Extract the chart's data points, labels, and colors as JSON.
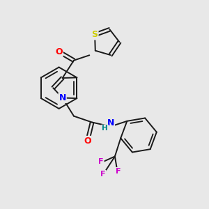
{
  "bg_color": "#e8e8e8",
  "bond_color": "#1a1a1a",
  "atom_colors": {
    "O": "#ff0000",
    "N": "#0000ff",
    "S": "#cccc00",
    "F": "#cc00cc",
    "H": "#008888",
    "C": "#1a1a1a"
  },
  "bond_width": 1.4,
  "figsize": [
    3.0,
    3.0
  ],
  "dpi": 100,
  "xlim": [
    0,
    10
  ],
  "ylim": [
    0,
    10
  ]
}
